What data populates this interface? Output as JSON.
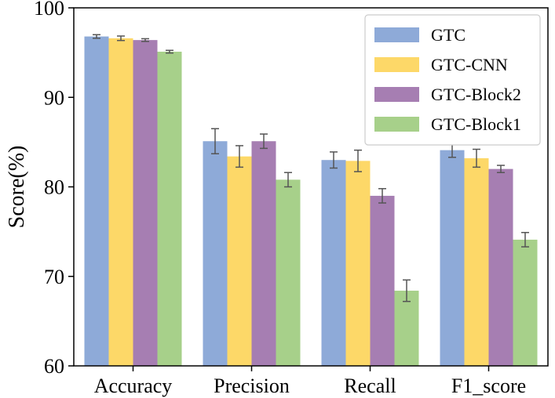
{
  "chart_data": {
    "type": "bar",
    "title": "",
    "xlabel": "",
    "ylabel": "Score(%)",
    "ylim": [
      60,
      100
    ],
    "yticks": [
      "60",
      "70",
      "80",
      "90",
      "100"
    ],
    "grid": false,
    "legend_position": "top-right",
    "categories": [
      "Accuracy",
      "Precision",
      "Recall",
      "F1_score"
    ],
    "series": [
      {
        "name": "GTC",
        "color": "#8eaad8",
        "values": [
          96.8,
          85.1,
          83.0,
          84.1
        ],
        "errors": [
          0.2,
          1.4,
          0.9,
          0.8
        ]
      },
      {
        "name": "GTC-CNN",
        "color": "#fdd868",
        "values": [
          96.6,
          83.4,
          82.9,
          83.2
        ],
        "errors": [
          0.25,
          1.2,
          1.2,
          1.0
        ]
      },
      {
        "name": "GTC-Block2",
        "color": "#a67eb2",
        "values": [
          96.4,
          85.1,
          79.0,
          82.0
        ],
        "errors": [
          0.15,
          0.8,
          0.8,
          0.4
        ]
      },
      {
        "name": "GTC-Block1",
        "color": "#a7d08a",
        "values": [
          95.1,
          80.8,
          68.4,
          74.1
        ],
        "errors": [
          0.15,
          0.8,
          1.2,
          0.8
        ]
      }
    ]
  }
}
